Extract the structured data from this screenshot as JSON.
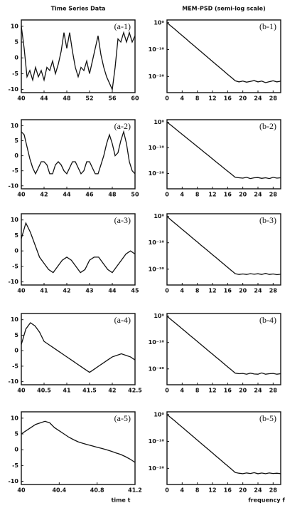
{
  "chart_data": [
    {
      "type": "line",
      "title": "Time Series Data",
      "annotation": "(a-1)",
      "color": "#111",
      "x": [
        40,
        40.5,
        41,
        41.5,
        42,
        42.5,
        43,
        43.5,
        44,
        44.5,
        45,
        45.5,
        46,
        46.5,
        47,
        47.5,
        48,
        48.5,
        49,
        49.5,
        50,
        50.5,
        51,
        51.5,
        52,
        52.5,
        53,
        53.5,
        54,
        54.5,
        55,
        55.5,
        56,
        56.5,
        57,
        57.5,
        58,
        58.5,
        59,
        59.5,
        60
      ],
      "values": [
        10,
        3,
        -6,
        -4,
        -7,
        -3,
        -6,
        -4,
        -7,
        -3,
        -4,
        -1,
        -5,
        -2,
        2,
        8,
        3,
        8,
        2,
        -3,
        -6,
        -3,
        -4,
        -1,
        -5,
        -1,
        3,
        7,
        1,
        -3,
        -6,
        -8,
        -10,
        -3,
        6,
        5,
        8,
        5,
        8,
        5,
        7
      ],
      "xlim": [
        40,
        60
      ],
      "xticks": [
        40,
        44,
        48,
        52,
        56,
        60
      ],
      "ylim": [
        -11,
        12
      ],
      "yticks": [
        10,
        5,
        0,
        -5,
        -10
      ]
    },
    {
      "type": "line",
      "title": "MEM-PSD (semi-log scale)",
      "annotation": "(b-1)",
      "color": "#111",
      "log_scale": true,
      "x": [
        0,
        1,
        2,
        3,
        4,
        5,
        6,
        7,
        8,
        9,
        10,
        11,
        12,
        13,
        14,
        15,
        16,
        17,
        18,
        19,
        20,
        21,
        22,
        23,
        24,
        25,
        26,
        27,
        28,
        29,
        30
      ],
      "values": [
        1,
        0.06,
        0.004,
        0.00025,
        1.6e-05,
        1e-06,
        6e-08,
        4e-09,
        2.5e-10,
        1.6e-11,
        1e-12,
        6e-14,
        4e-15,
        2.5e-16,
        1.6e-17,
        1e-18,
        6e-20,
        4e-21,
        2.5e-22,
        1e-22,
        2e-22,
        8e-23,
        1.5e-22,
        3e-22,
        1e-22,
        2e-22,
        5e-23,
        1.2e-22,
        2.5e-22,
        1e-22,
        1.8e-22
      ],
      "xlim": [
        0,
        30
      ],
      "xticks": [
        0,
        4,
        8,
        12,
        16,
        20,
        24,
        28
      ],
      "ylim": [
        1e-26,
        10
      ],
      "yticks": [
        {
          "value": 1,
          "label": "10⁰"
        },
        {
          "value": 1e-10,
          "label": "10⁻¹⁰"
        },
        {
          "value": 1e-20,
          "label": "10⁻²⁰"
        }
      ]
    },
    {
      "type": "line",
      "annotation": "(a-2)",
      "color": "#111",
      "x": [
        40,
        40.25,
        40.5,
        40.75,
        41,
        41.25,
        41.5,
        41.75,
        42,
        42.25,
        42.5,
        42.75,
        43,
        43.25,
        43.5,
        43.75,
        44,
        44.25,
        44.5,
        44.75,
        45,
        45.25,
        45.5,
        45.75,
        46,
        46.25,
        46.5,
        46.75,
        47,
        47.25,
        47.5,
        47.75,
        48,
        48.25,
        48.5,
        48.75,
        49,
        49.25,
        49.5,
        49.75,
        50
      ],
      "values": [
        8,
        7,
        3,
        -1,
        -4,
        -6,
        -4,
        -2,
        -2,
        -3,
        -6,
        -6,
        -3,
        -2,
        -3,
        -5,
        -6,
        -4,
        -2,
        -2,
        -4,
        -6,
        -5,
        -2,
        -2,
        -4,
        -6,
        -6,
        -3,
        0,
        4,
        7,
        4,
        0,
        1,
        5,
        8,
        4,
        -2,
        -5,
        -6
      ],
      "xlim": [
        40,
        50
      ],
      "xticks": [
        40,
        42,
        44,
        46,
        48,
        50
      ],
      "ylim": [
        -11,
        12
      ],
      "yticks": [
        10,
        5,
        0,
        -5,
        -10
      ]
    },
    {
      "type": "line",
      "annotation": "(b-2)",
      "color": "#111",
      "log_scale": true,
      "x": [
        0,
        1,
        2,
        3,
        4,
        5,
        6,
        7,
        8,
        9,
        10,
        11,
        12,
        13,
        14,
        15,
        16,
        17,
        18,
        19,
        20,
        21,
        22,
        23,
        24,
        25,
        26,
        27,
        28,
        29,
        30
      ],
      "values": [
        1,
        0.08,
        0.005,
        0.0003,
        2e-05,
        1.2e-06,
        8e-08,
        5e-09,
        3e-10,
        2e-11,
        1.2e-12,
        8e-14,
        5e-15,
        3e-16,
        2e-17,
        1.2e-18,
        8e-20,
        5e-21,
        3e-22,
        2e-22,
        1.5e-22,
        3e-22,
        1e-22,
        2e-22,
        2.5e-22,
        1.2e-22,
        2e-22,
        1e-22,
        3e-22,
        1.5e-22,
        2e-22
      ],
      "xlim": [
        0,
        30
      ],
      "xticks": [
        0,
        4,
        8,
        12,
        16,
        20,
        24,
        28
      ],
      "ylim": [
        1e-26,
        10
      ],
      "yticks": [
        {
          "value": 1,
          "label": "10⁰"
        },
        {
          "value": 1e-10,
          "label": "10⁻¹⁰"
        },
        {
          "value": 1e-20,
          "label": "10⁻²⁰"
        }
      ]
    },
    {
      "type": "line",
      "annotation": "(a-3)",
      "color": "#111",
      "x": [
        40,
        40.2,
        40.4,
        40.6,
        40.8,
        41,
        41.2,
        41.4,
        41.6,
        41.8,
        42,
        42.2,
        42.4,
        42.6,
        42.8,
        43,
        43.2,
        43.4,
        43.6,
        43.8,
        44,
        44.2,
        44.4,
        44.6,
        44.8,
        45
      ],
      "values": [
        4,
        9,
        6,
        2,
        -2,
        -4,
        -6,
        -7,
        -5,
        -3,
        -2,
        -3,
        -5,
        -7,
        -6,
        -3,
        -2,
        -2,
        -4,
        -6,
        -7,
        -5,
        -3,
        -1,
        0,
        -1
      ],
      "xlim": [
        40,
        45
      ],
      "xticks": [
        40,
        41,
        42,
        43,
        44,
        45
      ],
      "ylim": [
        -11,
        12
      ],
      "yticks": [
        10,
        5,
        0,
        -5,
        -10
      ]
    },
    {
      "type": "line",
      "annotation": "(b-3)",
      "color": "#111",
      "log_scale": true,
      "x": [
        0,
        1,
        2,
        3,
        4,
        5,
        6,
        7,
        8,
        9,
        10,
        11,
        12,
        13,
        14,
        15,
        16,
        17,
        18,
        19,
        20,
        21,
        22,
        23,
        24,
        25,
        26,
        27,
        28,
        29,
        30
      ],
      "values": [
        1,
        0.05,
        0.003,
        0.0002,
        1.2e-05,
        8e-07,
        5e-08,
        3e-09,
        2e-10,
        1.2e-11,
        8e-13,
        5e-14,
        3e-15,
        2e-16,
        1.2e-17,
        8e-19,
        5e-20,
        3e-21,
        2e-22,
        1e-22,
        1.5e-22,
        1e-22,
        2e-22,
        1.2e-22,
        1.8e-22,
        1e-22,
        2.5e-22,
        1e-22,
        1.5e-22,
        8e-23,
        1.2e-22
      ],
      "xlim": [
        0,
        30
      ],
      "xticks": [
        0,
        4,
        8,
        12,
        16,
        20,
        24,
        28
      ],
      "ylim": [
        1e-26,
        10
      ],
      "yticks": [
        {
          "value": 1,
          "label": "10⁰"
        },
        {
          "value": 1e-10,
          "label": "10⁻¹⁰"
        },
        {
          "value": 1e-20,
          "label": "10⁻²⁰"
        }
      ]
    },
    {
      "type": "line",
      "annotation": "(a-4)",
      "color": "#111",
      "x": [
        40,
        40.1,
        40.2,
        40.3,
        40.4,
        40.5,
        40.6,
        40.7,
        40.8,
        40.9,
        41,
        41.1,
        41.2,
        41.3,
        41.4,
        41.5,
        41.6,
        41.7,
        41.8,
        41.9,
        42,
        42.1,
        42.2,
        42.3,
        42.4,
        42.5
      ],
      "values": [
        2,
        7,
        9,
        8,
        6,
        3,
        2,
        1,
        0,
        -1,
        -2,
        -3,
        -4,
        -5,
        -6,
        -7,
        -6,
        -5,
        -4,
        -3,
        -2,
        -1.5,
        -1,
        -1.5,
        -2,
        -3
      ],
      "xlim": [
        40,
        42.5
      ],
      "xticks": [
        40,
        40.5,
        41,
        41.5,
        42,
        42.5
      ],
      "ylim": [
        -11,
        12
      ],
      "yticks": [
        10,
        5,
        0,
        -5,
        -10
      ]
    },
    {
      "type": "line",
      "annotation": "(b-4)",
      "color": "#111",
      "log_scale": true,
      "x": [
        0,
        1,
        2,
        3,
        4,
        5,
        6,
        7,
        8,
        9,
        10,
        11,
        12,
        13,
        14,
        15,
        16,
        17,
        18,
        19,
        20,
        21,
        22,
        23,
        24,
        25,
        26,
        27,
        28,
        29,
        30
      ],
      "values": [
        1,
        0.06,
        0.004,
        0.00025,
        1.6e-05,
        1e-06,
        6e-08,
        4e-09,
        2.5e-10,
        1.6e-11,
        1e-12,
        6e-14,
        4e-15,
        2.5e-16,
        1.6e-17,
        1e-18,
        6e-20,
        4e-21,
        2.5e-22,
        1.5e-22,
        2e-22,
        1e-22,
        2.5e-22,
        1.2e-22,
        1e-22,
        3e-22,
        1e-22,
        1.5e-22,
        2e-22,
        1e-22,
        1.5e-22
      ],
      "xlim": [
        0,
        30
      ],
      "xticks": [
        0,
        4,
        8,
        12,
        16,
        20,
        24,
        28
      ],
      "ylim": [
        1e-26,
        10
      ],
      "yticks": [
        {
          "value": 1,
          "label": "10⁰"
        },
        {
          "value": 1e-10,
          "label": "10⁻¹⁰"
        },
        {
          "value": 1e-20,
          "label": "10⁻²⁰"
        }
      ]
    },
    {
      "type": "line",
      "annotation": "(a-5)",
      "color": "#111",
      "x_label": "time t",
      "x": [
        40,
        40.05,
        40.1,
        40.15,
        40.2,
        40.25,
        40.3,
        40.35,
        40.4,
        40.45,
        40.5,
        40.55,
        40.6,
        40.65,
        40.7,
        40.75,
        40.8,
        40.85,
        40.9,
        40.95,
        41,
        41.05,
        41.1,
        41.15,
        41.2
      ],
      "values": [
        5,
        6,
        7,
        8,
        8.5,
        9,
        8.5,
        7,
        6,
        5,
        4,
        3.2,
        2.5,
        2,
        1.6,
        1.2,
        0.8,
        0.4,
        0,
        -0.5,
        -1,
        -1.5,
        -2.2,
        -3,
        -4
      ],
      "xlim": [
        40,
        41.2
      ],
      "xticks": [
        40,
        40.4,
        40.8,
        41.2
      ],
      "ylim": [
        -11,
        12
      ],
      "yticks": [
        10,
        5,
        0,
        -5,
        -10
      ]
    },
    {
      "type": "line",
      "annotation": "(b-5)",
      "color": "#111",
      "log_scale": true,
      "x_label": "frequency f",
      "x": [
        0,
        1,
        2,
        3,
        4,
        5,
        6,
        7,
        8,
        9,
        10,
        11,
        12,
        13,
        14,
        15,
        16,
        17,
        18,
        19,
        20,
        21,
        22,
        23,
        24,
        25,
        26,
        27,
        28,
        29,
        30
      ],
      "values": [
        1,
        0.07,
        0.005,
        0.0003,
        2e-05,
        1.2e-06,
        8e-08,
        5e-09,
        3e-10,
        2e-11,
        1.2e-12,
        8e-14,
        5e-15,
        3e-16,
        2e-17,
        1.2e-18,
        8e-20,
        5e-21,
        3e-22,
        1.5e-22,
        1e-22,
        2e-22,
        1.2e-22,
        2.5e-22,
        1e-22,
        1.8e-22,
        1e-22,
        2e-22,
        1.2e-22,
        1.5e-22,
        1e-22
      ],
      "xlim": [
        0,
        30
      ],
      "xticks": [
        0,
        4,
        8,
        12,
        16,
        20,
        24,
        28
      ],
      "ylim": [
        1e-26,
        10
      ],
      "yticks": [
        {
          "value": 1,
          "label": "10⁰"
        },
        {
          "value": 1e-10,
          "label": "10⁻¹⁰"
        },
        {
          "value": 1e-20,
          "label": "10⁻²⁰"
        }
      ]
    }
  ]
}
